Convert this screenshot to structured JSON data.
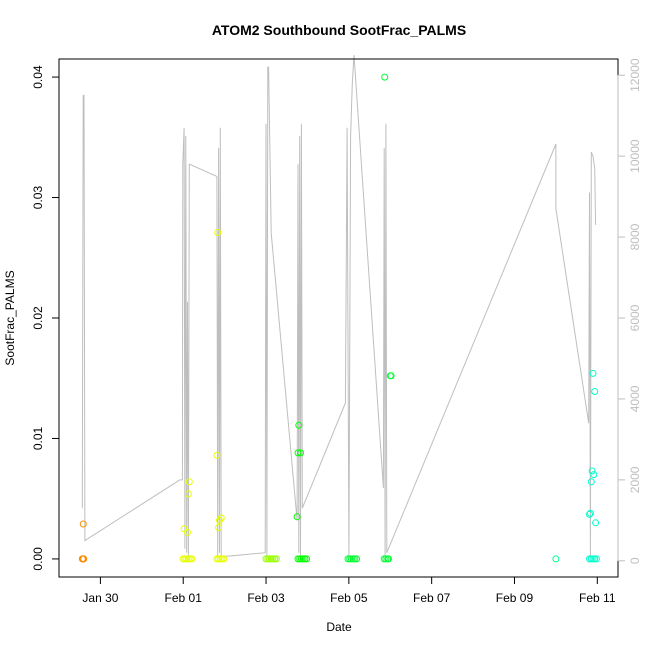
{
  "chart_data": {
    "type": "scatter",
    "title": "ATOM2 Southbound SootFrac_PALMS",
    "xlabel": "Date",
    "ylabel": "SootFrac_PALMS",
    "xlim": [
      "2017-01-29T00:00",
      "2017-02-11T12:00"
    ],
    "ylim": [
      -0.0015,
      0.0415
    ],
    "y2lim": [
      -400,
      12400
    ],
    "x_ticks": [
      "2017-01-30",
      "2017-02-01",
      "2017-02-03",
      "2017-02-05",
      "2017-02-07",
      "2017-02-09",
      "2017-02-11"
    ],
    "x_tick_labels": [
      "Jan 30",
      "Feb 01",
      "Feb 03",
      "Feb 05",
      "Feb 07",
      "Feb 09",
      "Feb 11"
    ],
    "y_ticks": [
      0.0,
      0.01,
      0.02,
      0.03,
      0.04
    ],
    "y_tick_labels": [
      "0.00",
      "0.01",
      "0.02",
      "0.03",
      "0.04"
    ],
    "y2_ticks": [
      0,
      2000,
      4000,
      6000,
      8000,
      10000,
      12000
    ],
    "y2_tick_labels": [
      "0",
      "2000",
      "4000",
      "6000",
      "8000",
      "10000",
      "12000"
    ],
    "grid": false,
    "legend": "none",
    "colors": {
      "altitude_line": "#bebebe",
      "points": [
        "#ff8c00",
        "#e6ff00",
        "#99ff00",
        "#00ff00",
        "#00ff33",
        "#00ff99",
        "#00ffcc"
      ]
    },
    "series": [
      {
        "kind": "points",
        "color": "#ff8c00",
        "points": [
          [
            "2017-01-29T13:30",
            0.0
          ],
          [
            "2017-01-29T13:45",
            0.0
          ],
          [
            "2017-01-29T14:00",
            0.0
          ],
          [
            "2017-01-29T14:10",
            0.0
          ],
          [
            "2017-01-29T14:20",
            0.0
          ],
          [
            "2017-01-29T14:05",
            0.0029
          ]
        ]
      },
      {
        "kind": "points",
        "color": "#e6ff00",
        "points": [
          [
            "2017-02-01T00:00",
            0.0
          ],
          [
            "2017-02-01T01:00",
            0.0
          ],
          [
            "2017-02-01T02:00",
            0.0
          ],
          [
            "2017-02-01T03:00",
            0.0
          ],
          [
            "2017-02-01T04:00",
            0.0
          ],
          [
            "2017-02-01T05:00",
            0.0
          ],
          [
            "2017-02-01T00:30",
            0.0025
          ],
          [
            "2017-02-01T02:30",
            0.0022
          ],
          [
            "2017-02-01T03:00",
            0.0054
          ],
          [
            "2017-02-01T03:30",
            0.0064
          ],
          [
            "2017-02-01T19:30",
            0.0
          ],
          [
            "2017-02-01T20:30",
            0.0
          ],
          [
            "2017-02-01T21:30",
            0.0
          ],
          [
            "2017-02-01T22:30",
            0.0
          ],
          [
            "2017-02-01T23:30",
            0.0
          ],
          [
            "2017-02-01T19:30",
            0.0086
          ],
          [
            "2017-02-01T20:00",
            0.0271
          ],
          [
            "2017-02-01T20:30",
            0.0026
          ],
          [
            "2017-02-01T21:00",
            0.0032
          ],
          [
            "2017-02-01T22:00",
            0.0034
          ]
        ]
      },
      {
        "kind": "points",
        "color": "#99ff00",
        "points": [
          [
            "2017-02-03T00:00",
            0.0
          ],
          [
            "2017-02-03T01:00",
            0.0
          ],
          [
            "2017-02-03T02:00",
            0.0
          ],
          [
            "2017-02-03T03:00",
            0.0
          ],
          [
            "2017-02-03T04:00",
            0.0
          ],
          [
            "2017-02-03T05:00",
            0.0
          ],
          [
            "2017-02-03T06:00",
            0.0
          ]
        ]
      },
      {
        "kind": "points",
        "color": "#00ff00",
        "points": [
          [
            "2017-02-03T18:30",
            0.0
          ],
          [
            "2017-02-03T19:30",
            0.0
          ],
          [
            "2017-02-03T20:30",
            0.0
          ],
          [
            "2017-02-03T21:30",
            0.0
          ],
          [
            "2017-02-03T22:30",
            0.0
          ],
          [
            "2017-02-03T23:30",
            0.0
          ],
          [
            "2017-02-03T18:00",
            0.0035
          ],
          [
            "2017-02-03T18:30",
            0.0088
          ],
          [
            "2017-02-03T19:00",
            0.0111
          ],
          [
            "2017-02-03T20:00",
            0.0088
          ]
        ]
      },
      {
        "kind": "points",
        "color": "#00ff33",
        "points": [
          [
            "2017-02-04T23:30",
            0.0
          ],
          [
            "2017-02-05T00:30",
            0.0
          ],
          [
            "2017-02-05T01:30",
            0.0
          ],
          [
            "2017-02-05T02:30",
            0.0
          ],
          [
            "2017-02-05T03:30",
            0.0
          ],
          [
            "2017-02-05T04:30",
            0.0
          ],
          [
            "2017-02-05T20:30",
            0.0
          ],
          [
            "2017-02-05T21:30",
            0.0
          ],
          [
            "2017-02-05T22:30",
            0.0
          ],
          [
            "2017-02-05T23:00",
            0.0
          ],
          [
            "2017-02-05T20:45",
            0.04
          ],
          [
            "2017-02-06T00:00",
            0.0152
          ],
          [
            "2017-02-06T00:30",
            0.0152
          ]
        ]
      },
      {
        "kind": "points",
        "color": "#00ff99",
        "points": [
          [
            "2017-02-10T00:00",
            0.0
          ]
        ]
      },
      {
        "kind": "points",
        "color": "#00ffcc",
        "points": [
          [
            "2017-02-10T19:30",
            0.0
          ],
          [
            "2017-02-10T20:30",
            0.0
          ],
          [
            "2017-02-10T21:30",
            0.0
          ],
          [
            "2017-02-10T22:30",
            0.0
          ],
          [
            "2017-02-10T23:30",
            0.0
          ],
          [
            "2017-02-10T19:30",
            0.0037
          ],
          [
            "2017-02-10T20:00",
            0.0038
          ],
          [
            "2017-02-10T20:30",
            0.0064
          ],
          [
            "2017-02-10T21:00",
            0.0073
          ],
          [
            "2017-02-10T22:00",
            0.007
          ],
          [
            "2017-02-10T21:30",
            0.0154
          ],
          [
            "2017-02-10T22:30",
            0.0139
          ],
          [
            "2017-02-10T23:00",
            0.003
          ]
        ]
      },
      {
        "kind": "line",
        "axis": "right",
        "color": "#bebebe",
        "points": [
          [
            "2017-01-29T13:30",
            1300
          ],
          [
            "2017-01-29T14:00",
            11500
          ],
          [
            "2017-01-29T14:30",
            11500
          ],
          [
            "2017-01-29T15:00",
            500
          ],
          [
            "2017-01-31T22:00",
            2000
          ],
          [
            "2017-01-31T23:30",
            2000
          ],
          [
            "2017-01-31T23:45",
            9800
          ],
          [
            "2017-02-01T00:30",
            10700
          ],
          [
            "2017-02-01T01:00",
            300
          ],
          [
            "2017-02-01T01:30",
            10500
          ],
          [
            "2017-02-01T02:00",
            200
          ],
          [
            "2017-02-01T02:30",
            6400
          ],
          [
            "2017-02-01T03:00",
            100
          ],
          [
            "2017-02-01T03:30",
            9800
          ],
          [
            "2017-02-01T19:30",
            9500
          ],
          [
            "2017-02-01T20:00",
            100
          ],
          [
            "2017-02-01T20:30",
            10200
          ],
          [
            "2017-02-01T21:00",
            200
          ],
          [
            "2017-02-01T21:30",
            10700
          ],
          [
            "2017-02-01T22:00",
            100
          ],
          [
            "2017-02-02T23:30",
            200
          ],
          [
            "2017-02-03T00:00",
            10800
          ],
          [
            "2017-02-03T00:30",
            100
          ],
          [
            "2017-02-03T01:00",
            12200
          ],
          [
            "2017-02-03T01:30",
            12200
          ],
          [
            "2017-02-03T03:00",
            8100
          ],
          [
            "2017-02-03T18:00",
            1000
          ],
          [
            "2017-02-03T18:30",
            9800
          ],
          [
            "2017-02-03T19:00",
            200
          ],
          [
            "2017-02-03T19:30",
            10500
          ],
          [
            "2017-02-03T20:00",
            100
          ],
          [
            "2017-02-03T20:30",
            10800
          ],
          [
            "2017-02-03T21:00",
            1300
          ],
          [
            "2017-02-04T22:00",
            3900
          ],
          [
            "2017-02-04T23:00",
            10700
          ],
          [
            "2017-02-05T00:00",
            100
          ],
          [
            "2017-02-05T01:00",
            10500
          ],
          [
            "2017-02-05T02:00",
            11800
          ],
          [
            "2017-02-05T03:00",
            12500
          ],
          [
            "2017-02-05T20:00",
            1800
          ],
          [
            "2017-02-05T20:30",
            10200
          ],
          [
            "2017-02-05T21:00",
            100
          ],
          [
            "2017-02-05T21:30",
            10800
          ],
          [
            "2017-02-05T22:00",
            200
          ],
          [
            "2017-02-10T00:00",
            10300
          ],
          [
            "2017-02-10T00:00",
            8700
          ],
          [
            "2017-02-10T19:00",
            3400
          ],
          [
            "2017-02-10T19:30",
            9100
          ],
          [
            "2017-02-10T20:00",
            100
          ],
          [
            "2017-02-10T20:30",
            10100
          ],
          [
            "2017-02-10T21:30",
            10000
          ],
          [
            "2017-02-10T22:30",
            9700
          ],
          [
            "2017-02-10T23:00",
            8300
          ]
        ]
      }
    ]
  }
}
